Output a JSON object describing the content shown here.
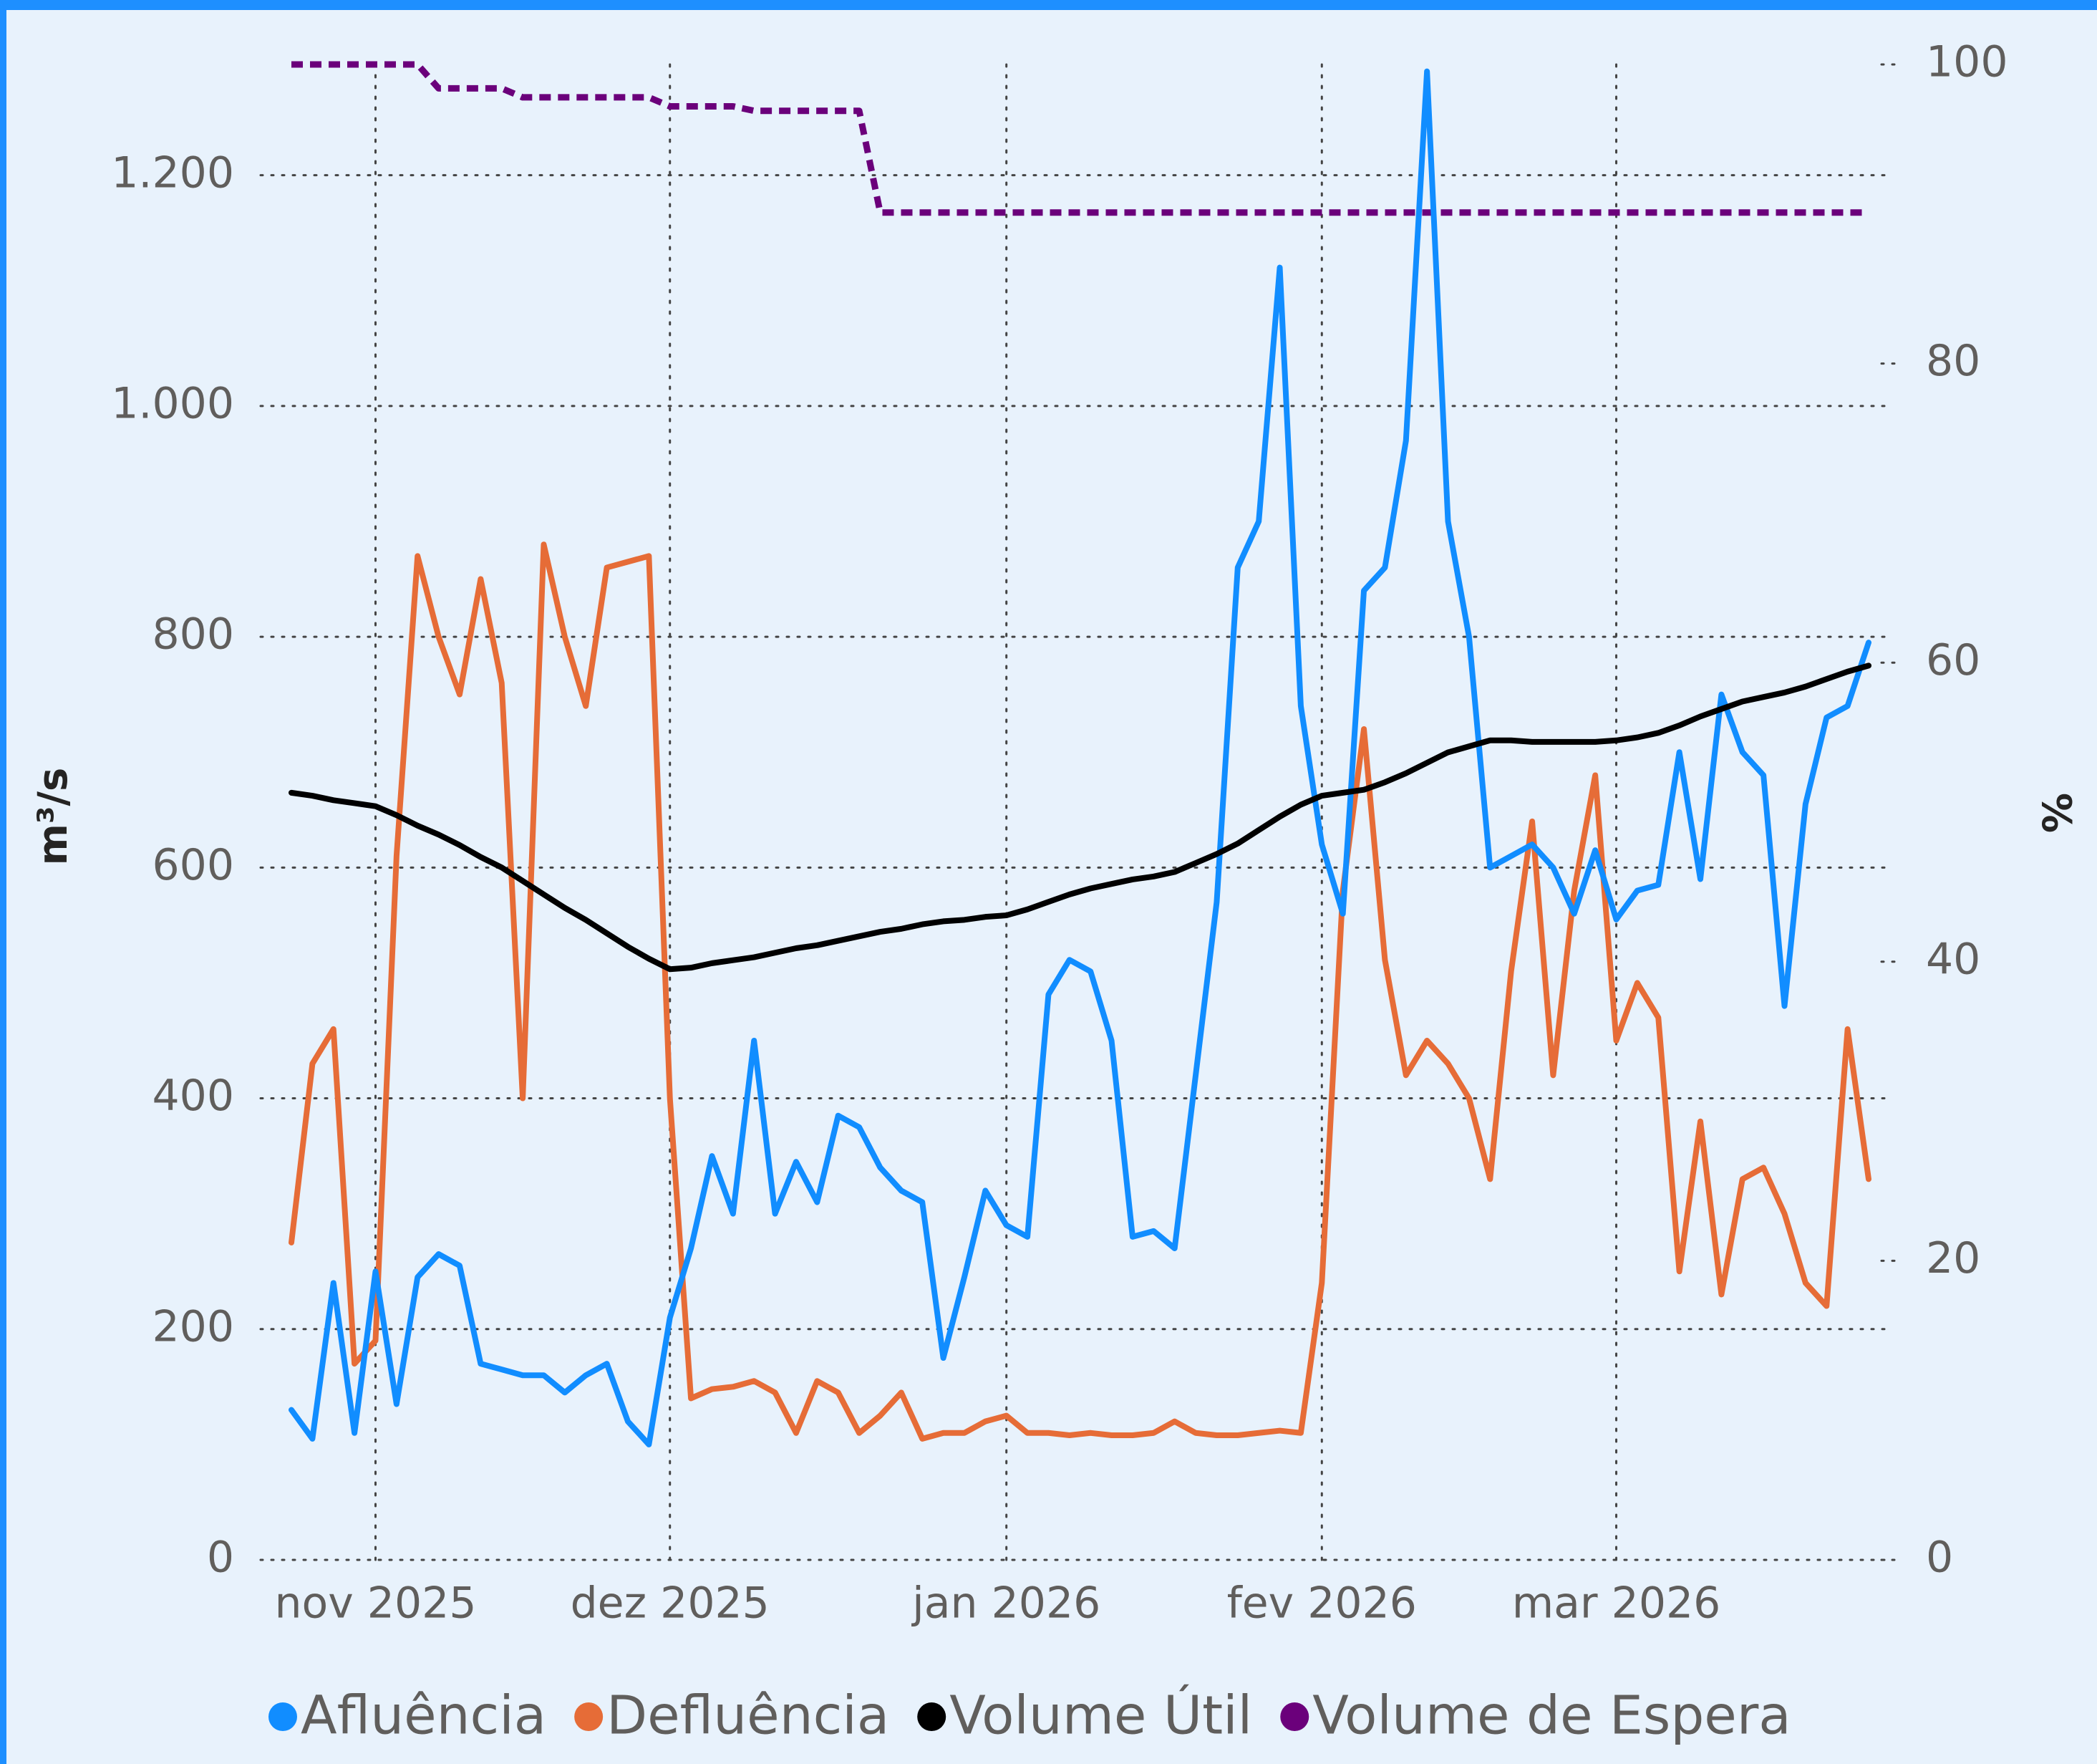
{
  "chart_data": {
    "type": "line",
    "y_label": "m³/s",
    "y2_label": "%",
    "categories": [
      null,
      null,
      null,
      null,
      "nov 2025",
      null,
      null,
      null,
      null,
      null,
      null,
      null,
      null,
      null,
      null,
      null,
      null,
      null,
      "dez 2025",
      null,
      null,
      null,
      null,
      null,
      null,
      null,
      null,
      null,
      null,
      null,
      null,
      null,
      null,
      null,
      "jan 2026",
      null,
      null,
      null,
      null,
      null,
      null,
      null,
      null,
      null,
      null,
      null,
      null,
      null,
      null,
      "fev 2026",
      null,
      null,
      null,
      null,
      null,
      null,
      null,
      null,
      null,
      null,
      null,
      null,
      null,
      "mar 2026",
      null,
      null,
      null,
      null,
      null,
      null,
      null,
      null,
      null,
      null,
      null,
      null
    ],
    "ylim": [
      0,
      1296
    ],
    "yticks": [
      0,
      200,
      400,
      600,
      800,
      {
        "value": 1000,
        "label": "1.000"
      },
      {
        "value": 1200,
        "label": "1.200"
      }
    ],
    "y2lim": [
      0,
      100
    ],
    "y2ticks": [
      0,
      20,
      40,
      60,
      80,
      100
    ],
    "grid": true,
    "series": [
      {
        "name": "Afluência",
        "color": "#118DFF",
        "values": [
          130,
          105,
          240,
          110,
          250,
          135,
          245,
          265,
          255,
          170,
          165,
          160,
          160,
          145,
          160,
          170,
          120,
          100,
          210,
          270,
          350,
          300,
          450,
          300,
          345,
          310,
          385,
          375,
          340,
          320,
          310,
          175,
          245,
          320,
          290,
          280,
          490,
          520,
          510,
          450,
          280,
          285,
          270,
          420,
          570,
          860,
          900,
          1120,
          740,
          620,
          560,
          840,
          860,
          970,
          1290,
          900,
          800,
          600,
          610,
          620,
          600,
          560,
          615,
          555,
          580,
          585,
          700,
          590,
          750,
          700,
          680,
          480,
          655,
          730,
          740,
          795
        ]
      },
      {
        "name": "Defluência",
        "color": "#E66C37",
        "values": [
          275,
          430,
          460,
          170,
          190,
          610,
          870,
          800,
          750,
          850,
          760,
          400,
          880,
          800,
          740,
          860,
          865,
          870,
          400,
          140,
          148,
          150,
          155,
          145,
          110,
          155,
          145,
          110,
          125,
          145,
          105,
          110,
          110,
          120,
          125,
          110,
          110,
          108,
          110,
          108,
          108,
          110,
          120,
          110,
          108,
          108,
          110,
          112,
          110,
          240,
          580,
          720,
          520,
          420,
          450,
          430,
          400,
          330,
          510,
          640,
          420,
          580,
          680,
          450,
          500,
          470,
          250,
          380,
          230,
          330,
          340,
          300,
          240,
          220,
          460,
          330
        ]
      },
      {
        "name": "Volume Útil",
        "color": "#000000",
        "axis": "y2",
        "values": [
          51.3,
          51.1,
          50.8,
          50.6,
          50.4,
          49.8,
          49.1,
          48.5,
          47.8,
          47.0,
          46.3,
          45.4,
          44.5,
          43.6,
          42.8,
          41.9,
          41.0,
          40.2,
          39.5,
          39.6,
          39.9,
          40.1,
          40.3,
          40.6,
          40.9,
          41.1,
          41.4,
          41.7,
          42.0,
          42.2,
          42.5,
          42.7,
          42.8,
          43.0,
          43.1,
          43.5,
          44.0,
          44.5,
          44.9,
          45.2,
          45.5,
          45.7,
          46.0,
          46.6,
          47.2,
          47.9,
          48.8,
          49.7,
          50.5,
          51.1,
          51.3,
          51.5,
          52.0,
          52.6,
          53.3,
          54.0,
          54.4,
          54.8,
          54.8,
          54.7,
          54.7,
          54.7,
          54.7,
          54.8,
          55.0,
          55.3,
          55.8,
          56.4,
          56.9,
          57.4,
          57.7,
          58.0,
          58.4,
          58.9,
          59.4,
          59.8
        ]
      },
      {
        "name": "Volume de Espera",
        "color": "#6B007B",
        "axis": "y2",
        "dashed": true,
        "values": [
          100,
          100,
          100,
          100,
          100,
          100,
          100,
          98.4,
          98.4,
          98.4,
          98.4,
          97.8,
          97.8,
          97.8,
          97.8,
          97.8,
          97.8,
          97.8,
          97.2,
          97.2,
          97.2,
          97.2,
          96.9,
          96.9,
          96.9,
          96.9,
          96.9,
          96.9,
          90.1,
          90.1,
          90.1,
          90.1,
          90.1,
          90.1,
          90.1,
          90.1,
          90.1,
          90.1,
          90.1,
          90.1,
          90.1,
          90.1,
          90.1,
          90.1,
          90.1,
          90.1,
          90.1,
          90.1,
          90.1,
          90.1,
          90.1,
          90.1,
          90.1,
          90.1,
          90.1,
          90.1,
          90.1,
          90.1,
          90.1,
          90.1,
          90.1,
          90.1,
          90.1,
          90.1,
          90.1,
          90.1,
          90.1,
          90.1,
          90.1,
          90.1,
          90.1,
          90.1,
          90.1,
          90.1,
          90.1,
          90.1
        ]
      }
    ]
  }
}
